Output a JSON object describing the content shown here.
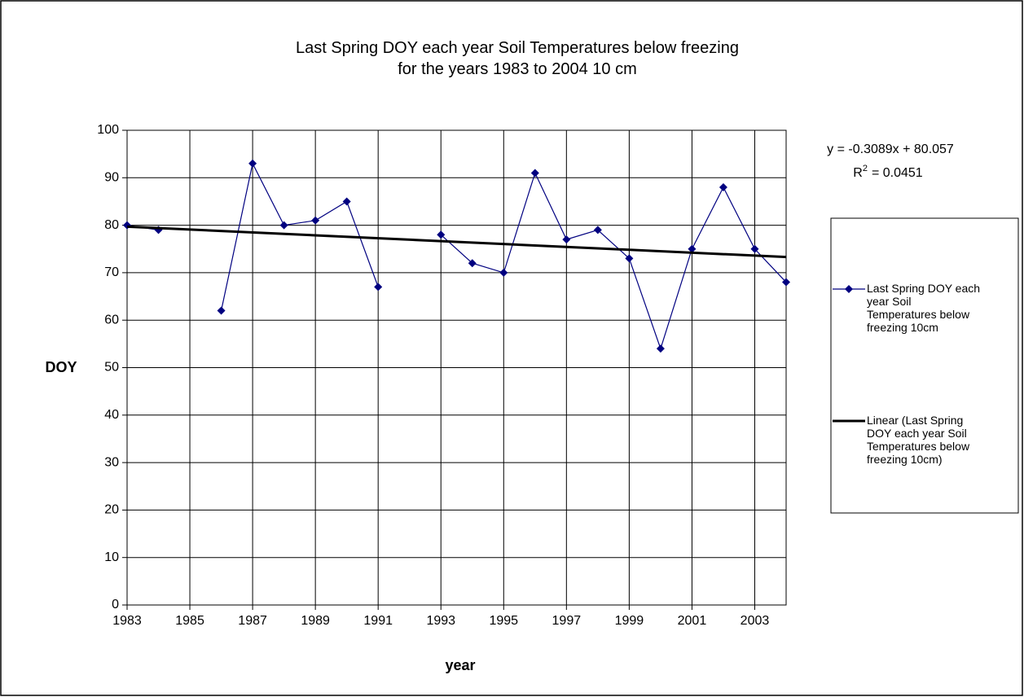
{
  "chart_data": {
    "type": "line",
    "title": [
      "Last Spring DOY each year Soil Temperatures below freezing",
      "for the years 1983 to 2004 10 cm"
    ],
    "x_label": "year",
    "y_label": "DOY",
    "x": [
      1983,
      1984,
      1985,
      1986,
      1987,
      1988,
      1989,
      1990,
      1991,
      1992,
      1993,
      1994,
      1995,
      1996,
      1997,
      1998,
      1999,
      2000,
      2001,
      2002,
      2003,
      2004
    ],
    "series": [
      {
        "name": "Last Spring DOY each year Soil Temperatures below freezing 10cm",
        "color": "#000080",
        "marker": "diamond",
        "values": [
          80,
          79,
          null,
          62,
          93,
          80,
          81,
          85,
          67,
          null,
          78,
          72,
          70,
          91,
          77,
          79,
          73,
          54,
          75,
          88,
          75,
          68
        ]
      },
      {
        "name": "Linear (Last Spring DOY each year Soil Temperatures below freezing 10cm)",
        "color": "#000000",
        "x": [
          1983,
          2004
        ],
        "values": [
          79.7,
          73.3
        ]
      }
    ],
    "annotation": {
      "equation": "y = -0.3089x + 80.057",
      "r2_symbol": "R",
      "r2_sup": "2",
      "r2_value": "= 0.0451"
    },
    "xlim": [
      1983,
      2004
    ],
    "xticks": [
      1983,
      1985,
      1987,
      1989,
      1991,
      1993,
      1995,
      1997,
      1999,
      2001,
      2003
    ],
    "ylim": [
      0,
      100
    ],
    "yticks": [
      0,
      10,
      20,
      30,
      40,
      50,
      60,
      70,
      80,
      90,
      100
    ],
    "grid": true,
    "legend": "right"
  }
}
